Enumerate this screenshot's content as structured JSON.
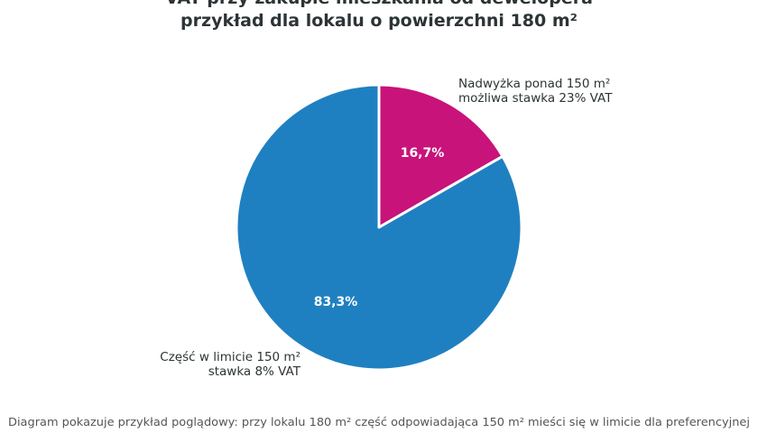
{
  "chart_data": {
    "type": "pie",
    "title_lines": [
      "VAT przy zakupie mieszkania od dewelopera",
      "przykład dla lokalu o powierzchni 180 m²"
    ],
    "slices": [
      {
        "label_lines": [
          "Nadwyżka ponad 150 m²",
          "możliwa stawka 23% VAT"
        ],
        "value": 16.7,
        "pct_label": "16,7%",
        "color": "#c8137a"
      },
      {
        "label_lines": [
          "Część w limicie 150 m²",
          "stawka 8% VAT"
        ],
        "value": 83.3,
        "pct_label": "83,3%",
        "color": "#1f80c1"
      }
    ],
    "footnote_lines": [
      "Diagram pokazuje przykład poglądowy: przy lokalu 180 m² część odpowiadająca 150 m² mieści się w limicie dla preferencyjnej",
      ""
    ]
  }
}
